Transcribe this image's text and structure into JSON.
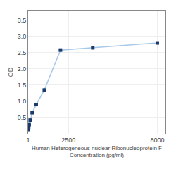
{
  "chart_data": {
    "type": "line",
    "x": [
      1,
      31.25,
      62.5,
      125,
      250,
      500,
      1000,
      2000,
      4000,
      8000
    ],
    "series": [
      {
        "type": "line",
        "color": "#a8c8e8",
        "values": [
          0.13,
          0.2,
          0.28,
          0.42,
          0.65,
          0.9,
          1.35,
          2.58,
          2.65,
          2.8
        ]
      },
      {
        "type": "scatter",
        "color": "#1a3a6b",
        "marker": "square",
        "values": [
          0.13,
          0.2,
          0.28,
          0.42,
          0.65,
          0.9,
          1.35,
          2.58,
          2.65,
          2.8
        ]
      }
    ],
    "xlabel": "Human Heterogeneous nuclear Ribonucleoprotein F\nConcentration (pg/ml)",
    "ylabel": "OD",
    "xlim": [
      0,
      8500
    ],
    "xticks": [
      1,
      2500,
      8000
    ],
    "ylim": [
      0,
      3.8
    ],
    "yticks": [
      0.5,
      {
        "value": 1.0,
        "label": "1.0"
      },
      1.5,
      {
        "value": 2.0,
        "label": "2.0"
      },
      2.5,
      {
        "value": 3.0,
        "label": "3.0"
      },
      3.5
    ],
    "grid": true
  }
}
